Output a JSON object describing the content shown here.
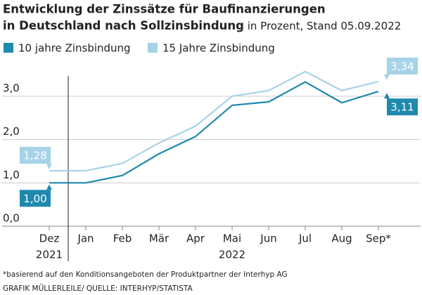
{
  "chart_data": {
    "type": "line",
    "title": [
      "Entwicklung der Zinssätze für Baufinanzierungen",
      "in Deutschland nach Sollzinsbindung"
    ],
    "subtitle": "in Prozent, Stand 05.09.2022",
    "categories": [
      "Dez",
      "Jan",
      "Feb",
      "Mär",
      "Apr",
      "Mai",
      "Jun",
      "Jul",
      "Aug",
      "Sep*"
    ],
    "category_years": [
      "2021",
      null,
      null,
      null,
      null,
      "2022",
      null,
      null,
      null,
      null
    ],
    "series": [
      {
        "name": "10 jahre Zinsbindung",
        "color": "#1f89ad",
        "values": [
          1.0,
          1.0,
          1.17,
          1.67,
          2.07,
          2.79,
          2.87,
          3.33,
          2.85,
          3.11
        ],
        "value_labels": [
          "1,00",
          null,
          null,
          null,
          null,
          null,
          null,
          null,
          null,
          "3,11"
        ]
      },
      {
        "name": "15 Jahre Zinsbindung",
        "color": "#a6d3e8",
        "values": [
          1.28,
          1.28,
          1.45,
          1.92,
          2.31,
          3.0,
          3.13,
          3.57,
          3.13,
          3.34
        ],
        "value_labels": [
          "1,28",
          null,
          null,
          null,
          null,
          null,
          null,
          null,
          null,
          "3,34"
        ]
      }
    ],
    "ylim": [
      0,
      3.6
    ],
    "yticks": [
      {
        "value": 0,
        "label": "0,0"
      },
      {
        "value": 1,
        "label": "1,0"
      },
      {
        "value": 2,
        "label": "2,0"
      },
      {
        "value": 3,
        "label": "3,0"
      }
    ],
    "grid": true,
    "footnote": "*basierend auf den Konditionsangeboten der Produktpartner der Interhyp AG",
    "source": "GRAFIK MÜLLERLEILE/ QUELLE: INTERHYP/STATISTA"
  }
}
